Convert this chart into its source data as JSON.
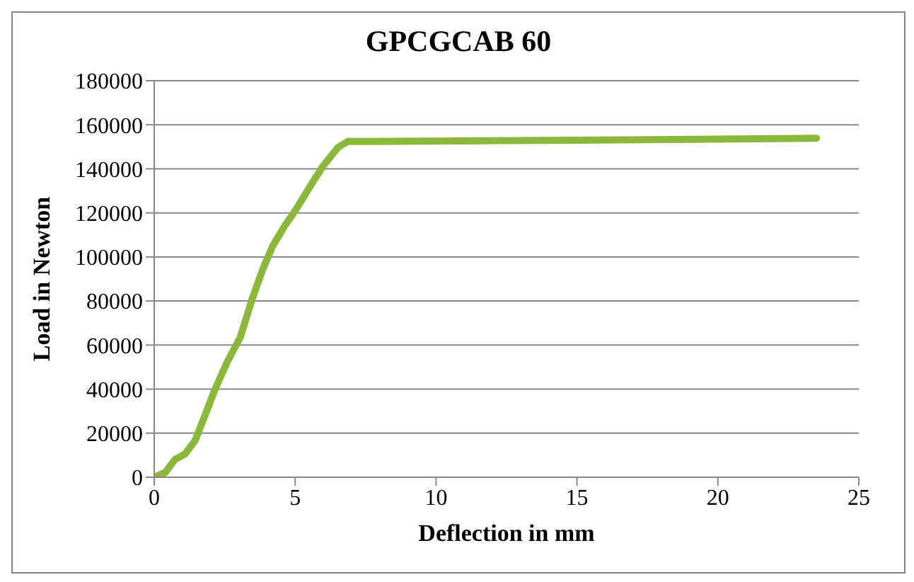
{
  "chart_data": {
    "type": "line",
    "title": "GPCGCAB 60",
    "xlabel": "Deflection in mm",
    "ylabel": "Load in Newton",
    "x": [
      0,
      0.39,
      0.74,
      1.1,
      1.45,
      1.81,
      2.16,
      2.61,
      3.05,
      3.49,
      3.85,
      4.2,
      4.65,
      5.0,
      5.45,
      5.98,
      6.51,
      6.86,
      7.84,
      10,
      15,
      20,
      23.5
    ],
    "series": [
      {
        "color": "#8db63c",
        "values": [
          0,
          2100,
          8100,
          10600,
          16600,
          28300,
          40000,
          52800,
          63400,
          81500,
          94300,
          104900,
          114500,
          120900,
          130400,
          141100,
          149600,
          152400,
          152400,
          152600,
          153000,
          153500,
          153900
        ]
      }
    ],
    "xlim": [
      0,
      25
    ],
    "xticks": [
      0,
      5,
      10,
      15,
      20,
      25
    ],
    "ylim": [
      0,
      180000
    ],
    "yticks": [
      0,
      20000,
      40000,
      60000,
      80000,
      100000,
      120000,
      140000,
      160000,
      180000
    ],
    "grid": "y",
    "marker": "none",
    "line_style": "solid"
  }
}
